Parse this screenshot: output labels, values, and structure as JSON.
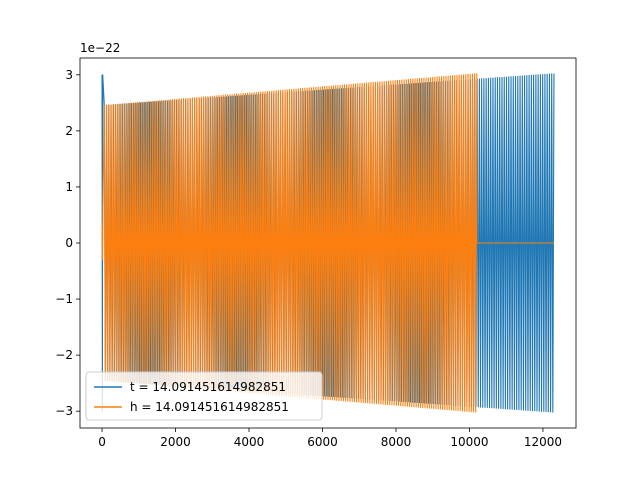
{
  "chart_data": {
    "type": "line",
    "title": "",
    "xlabel": "",
    "ylabel": "",
    "offset_label": "1e−22",
    "xlim": [
      -600,
      12900
    ],
    "ylim": [
      -3.3,
      3.3
    ],
    "x_ticks": [
      0,
      2000,
      4000,
      6000,
      8000,
      10000,
      12000
    ],
    "y_ticks": [
      -3,
      -2,
      -1,
      0,
      1,
      2,
      3
    ],
    "x_tick_labels": [
      "0",
      "2000",
      "4000",
      "6000",
      "8000",
      "10000",
      "12000"
    ],
    "y_tick_labels": [
      "−3",
      "−2",
      "−1",
      "0",
      "1",
      "2",
      "3"
    ],
    "grid": false,
    "legend_position": "lower-left",
    "series": [
      {
        "name": "t = 14.091451614982851",
        "color": "#1f77b4",
        "x_range": [
          0,
          12300
        ],
        "initial_amplitude": 3.0,
        "amplitude_start": 2.45,
        "amplitude_end": 3.02,
        "cycles": 200
      },
      {
        "name": "h = 14.091451614982851",
        "color": "#ff7f0e",
        "x_range": [
          0,
          10200
        ],
        "initial_amplitude": 0.3,
        "amplitude_start": 2.45,
        "amplitude_end": 3.02,
        "cycles": 170,
        "flat_x_range": [
          10200,
          12300
        ],
        "flat_value": 0
      }
    ]
  }
}
